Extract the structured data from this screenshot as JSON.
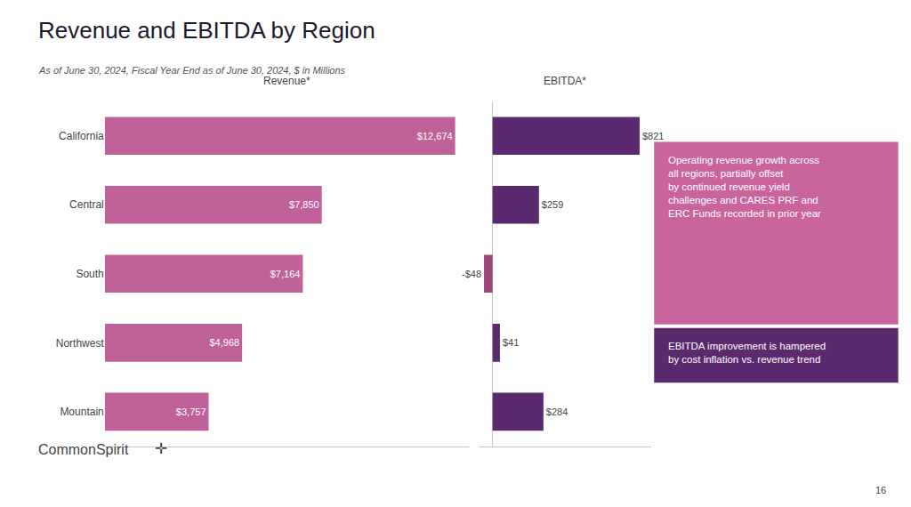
{
  "title": "Revenue and EBITDA by Region",
  "subtitle": "As of June 30, 2024, Fiscal Year End as of June 30, 2024, $ in Millions",
  "annotations": [
    {
      "text": "Operating revenue growth across\nall regions, partially offset\nby continued revenue yield\nchallenges and CARES PRF and\nERC Funds recorded in prior year",
      "color": "#c9659c"
    },
    {
      "text": "EBITDA improvement is hampered\nby cost inflation vs. revenue trend",
      "color": "#5b2a6e"
    }
  ],
  "footer": [
    "CommonSpirit",
    "✛",
    "16"
  ],
  "chart_data": [
    {
      "type": "bar",
      "title": "Revenue*",
      "orientation": "horizontal",
      "categories": [
        "California",
        "Central",
        "South",
        "Northwest",
        "Mountain"
      ],
      "values": [
        12674,
        7850,
        7164,
        4968,
        3757
      ],
      "value_labels": [
        "$12,674",
        "$7,850",
        "$7,164",
        "$4,968",
        "$3,757"
      ],
      "color": "#c0629a",
      "xlim": [
        0,
        13180.96
      ],
      "data_labels": true,
      "tick_labels": "y",
      "grid": false
    },
    {
      "type": "bar",
      "title": "EBITDA*",
      "orientation": "horizontal",
      "categories": [
        "California",
        "Central",
        "South",
        "Northwest",
        "Mountain"
      ],
      "values": [
        821,
        259,
        -48,
        41,
        284
      ],
      "value_labels": [
        "$821",
        "$259",
        "-$48",
        "$41",
        "$284"
      ],
      "colors": [
        "#5b2a6e",
        "#5b2a6e",
        "#a0477a",
        "#5b2a6e",
        "#5b2a6e"
      ],
      "xlim": [
        -80,
        886.68
      ],
      "data_labels": true,
      "tick_labels": false,
      "grid": false
    }
  ]
}
